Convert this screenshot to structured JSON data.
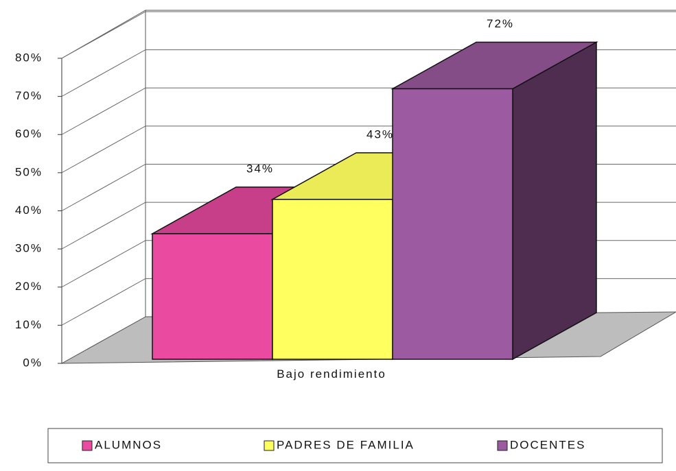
{
  "chart_data": {
    "type": "bar3d",
    "categories": [
      "Bajo rendimiento"
    ],
    "series": [
      {
        "name": "ALUMNOS",
        "color": "#ea4aa0",
        "values": [
          34
        ],
        "value_labels": [
          "34%"
        ]
      },
      {
        "name": "PADRES DE FAMILIA",
        "color": "#ffff60",
        "values": [
          43
        ],
        "value_labels": [
          "43%"
        ]
      },
      {
        "name": "DOCENTES",
        "color": "#9c5aa0",
        "values": [
          72
        ],
        "value_labels": [
          "72%"
        ]
      }
    ],
    "ylim": [
      0,
      80
    ],
    "yticks": [
      {
        "value": 0,
        "label": "0%"
      },
      {
        "value": 10,
        "label": "10%"
      },
      {
        "value": 20,
        "label": "20%"
      },
      {
        "value": 30,
        "label": "30%"
      },
      {
        "value": 40,
        "label": "40%"
      },
      {
        "value": 50,
        "label": "50%"
      },
      {
        "value": 60,
        "label": "60%"
      },
      {
        "value": 70,
        "label": "70%"
      },
      {
        "value": 80,
        "label": "80%"
      }
    ],
    "grid": true,
    "legend": "bottom"
  }
}
